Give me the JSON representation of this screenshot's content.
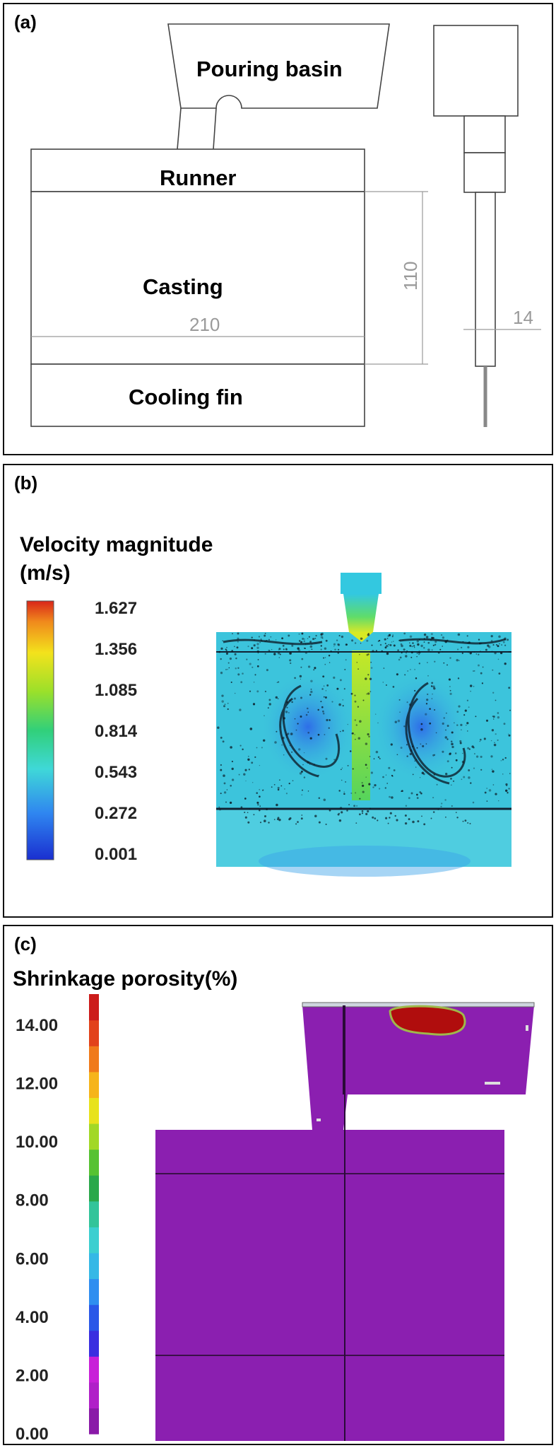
{
  "panel_a": {
    "label": "(a)",
    "pouring_basin": "Pouring basin",
    "runner": "Runner",
    "casting": "Casting",
    "cooling_fin": "Cooling fin",
    "dim_width": "210",
    "dim_height": "110",
    "dim_thickness": "14"
  },
  "panel_b": {
    "label": "(b)",
    "legend_title": "Velocity magnitude",
    "legend_unit": "(m/s)",
    "ticks": [
      "1.627",
      "1.356",
      "1.085",
      "0.814",
      "0.543",
      "0.272",
      "0.001"
    ]
  },
  "panel_c": {
    "label": "(c)",
    "legend_title": "Shrinkage porosity(%)",
    "ticks": [
      "14.00",
      "12.00",
      "10.00",
      "8.00",
      "6.00",
      "4.00",
      "2.00",
      "0.00"
    ]
  },
  "colors": {
    "velocity_low": "#1f4fd6",
    "velocity_mid": "#40d8c8",
    "velocity_high": "#e8231a",
    "porosity_background": "#8b1fb0",
    "porosity_hotspot": "#b00d0d"
  }
}
